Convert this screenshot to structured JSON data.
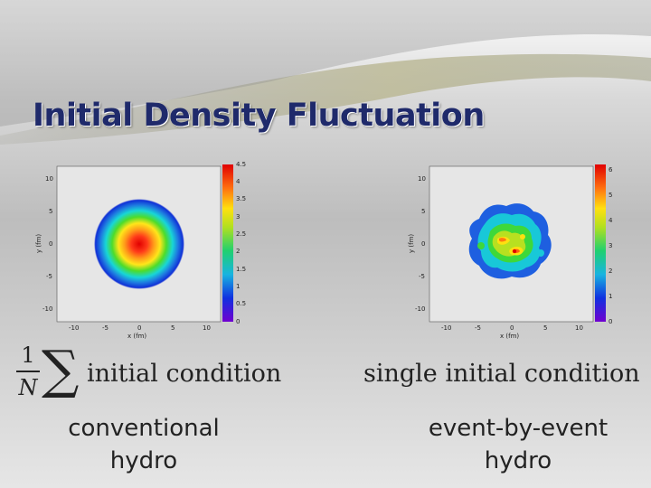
{
  "slide": {
    "title": "Initial Density Fluctuation",
    "left": {
      "formula_num": "1",
      "formula_den": "N",
      "formula_sum": "∑",
      "formula_text": "initial condition",
      "caption_line1": "conventional",
      "caption_line2": "hydro"
    },
    "right": {
      "formula_text": "single initial condition",
      "caption_line1": "event-by-event",
      "caption_line2": "hydro"
    }
  },
  "colors": {
    "title": "#1f2a6b",
    "plot_bg": "#e6e6e6"
  },
  "chart_data": [
    {
      "type": "heatmap",
      "xlabel": "x (fm)",
      "ylabel": "y (fm)",
      "xticks": [
        "-10",
        "-5",
        "0",
        "5",
        "10"
      ],
      "yticks": [
        "10",
        "5",
        "0",
        "-5",
        "-10"
      ],
      "xlim": [
        -14,
        14
      ],
      "ylim": [
        -14,
        14
      ],
      "colorbar_ticks": [
        "4.5",
        "4",
        "3.5",
        "3",
        "2.5",
        "2",
        "1.5",
        "1",
        "0.5",
        "0"
      ],
      "zlim": [
        0,
        4.5
      ],
      "distribution": "smooth radial Gaussian centered at origin, radius ~7 fm"
    },
    {
      "type": "heatmap",
      "xlabel": "x (fm)",
      "ylabel": "y (fm)",
      "xticks": [
        "-10",
        "-5",
        "0",
        "5",
        "10"
      ],
      "yticks": [
        "10",
        "5",
        "0",
        "-5",
        "-10"
      ],
      "xlim": [
        -14,
        14
      ],
      "ylim": [
        -14,
        14
      ],
      "colorbar_ticks": [
        "6",
        "5",
        "4",
        "3",
        "2",
        "1",
        "0"
      ],
      "zlim": [
        0,
        6
      ],
      "distribution": "lumpy fluctuating profile with hot spots near center"
    }
  ]
}
